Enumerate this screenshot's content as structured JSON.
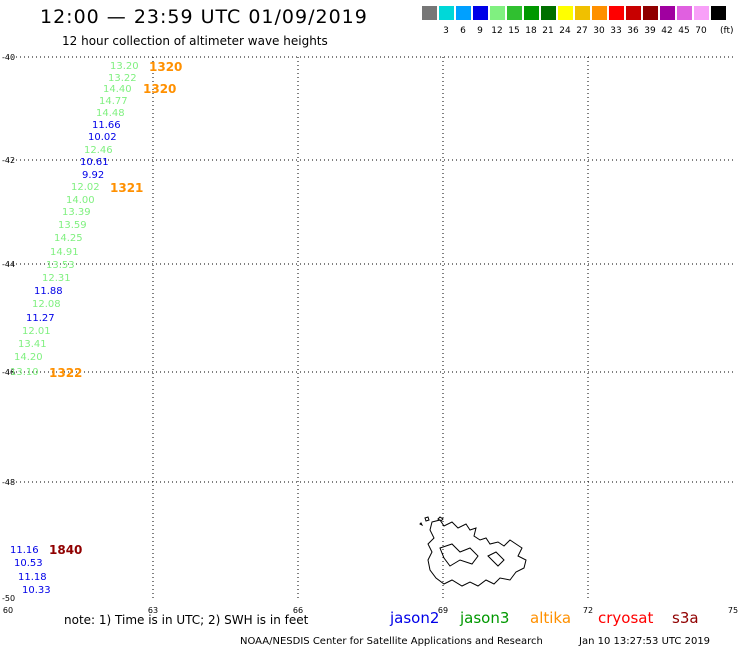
{
  "header": {
    "title": "12:00 — 23:59 UTC 01/09/2019",
    "subtitle": "12 hour collection of altimeter wave heights"
  },
  "legend": {
    "unit": "(ft)",
    "bins": [
      {
        "label": "",
        "color": "#777777"
      },
      {
        "label": "3",
        "color": "#00d8d8"
      },
      {
        "label": "6",
        "color": "#00a0ff"
      },
      {
        "label": "9",
        "color": "#0000e8"
      },
      {
        "label": "12",
        "color": "#80f080"
      },
      {
        "label": "15",
        "color": "#30c030"
      },
      {
        "label": "18",
        "color": "#009800"
      },
      {
        "label": "21",
        "color": "#007000"
      },
      {
        "label": "24",
        "color": "#ffff00"
      },
      {
        "label": "27",
        "color": "#f0c000"
      },
      {
        "label": "30",
        "color": "#ff9000"
      },
      {
        "label": "33",
        "color": "#ff0000"
      },
      {
        "label": "36",
        "color": "#c80000"
      },
      {
        "label": "39",
        "color": "#900000"
      },
      {
        "label": "42",
        "color": "#a000a0"
      },
      {
        "label": "45",
        "color": "#e060e0"
      },
      {
        "label": "70",
        "color": "#f8a0f8"
      },
      {
        "label": "",
        "color": "#000000"
      }
    ]
  },
  "map": {
    "lat_labels": [
      "-40",
      "-42",
      "-44",
      "-46",
      "-48",
      "-50"
    ],
    "lon_labels": [
      "60",
      "63",
      "66",
      "69",
      "72",
      "75"
    ],
    "measurements": [
      {
        "v": "13.20",
        "c": "#80f080"
      },
      {
        "v": "13.22",
        "c": "#80f080"
      },
      {
        "v": "14.40",
        "c": "#80f080"
      },
      {
        "v": "14.77",
        "c": "#80f080"
      },
      {
        "v": "14.48",
        "c": "#80f080"
      },
      {
        "v": "11.66",
        "c": "#0000e8"
      },
      {
        "v": "10.02",
        "c": "#0000e8"
      },
      {
        "v": "12.46",
        "c": "#80f080"
      },
      {
        "v": "10.61",
        "c": "#0000e8"
      },
      {
        "v": "9.92",
        "c": "#0000e8"
      },
      {
        "v": "12.02",
        "c": "#80f080"
      },
      {
        "v": "14.00",
        "c": "#80f080"
      },
      {
        "v": "13.39",
        "c": "#80f080"
      },
      {
        "v": "13.59",
        "c": "#80f080"
      },
      {
        "v": "14.25",
        "c": "#80f080"
      },
      {
        "v": "14.91",
        "c": "#80f080"
      },
      {
        "v": "13.53",
        "c": "#80f080"
      },
      {
        "v": "12.31",
        "c": "#80f080"
      },
      {
        "v": "11.88",
        "c": "#0000e8"
      },
      {
        "v": "12.08",
        "c": "#80f080"
      },
      {
        "v": "11.27",
        "c": "#0000e8"
      },
      {
        "v": "12.01",
        "c": "#80f080"
      },
      {
        "v": "13.41",
        "c": "#80f080"
      },
      {
        "v": "14.20",
        "c": "#80f080"
      },
      {
        "v": "13.10",
        "c": "#80f080"
      },
      {
        "v": "11.16",
        "c": "#0000e8"
      },
      {
        "v": "10.53",
        "c": "#0000e8"
      },
      {
        "v": "11.18",
        "c": "#0000e8"
      },
      {
        "v": "10.33",
        "c": "#0000e8"
      }
    ],
    "pass_times": [
      {
        "v": "1320",
        "c": "#ff9000"
      },
      {
        "v": "1320",
        "c": "#ff9000"
      },
      {
        "v": "1321",
        "c": "#ff9000"
      },
      {
        "v": "1322",
        "c": "#ff9000"
      },
      {
        "v": "1840",
        "c": "#900000"
      }
    ]
  },
  "footer": {
    "note": "note: 1) Time is in UTC; 2) SWH is in feet",
    "satellites": [
      {
        "name": "jason2",
        "color": "#0000e8"
      },
      {
        "name": "jason3",
        "color": "#009800"
      },
      {
        "name": "altika",
        "color": "#ff9000"
      },
      {
        "name": "cryosat",
        "color": "#ff0000"
      },
      {
        "name": "s3a",
        "color": "#900000"
      }
    ],
    "credit": "NOAA/NESDIS Center for Satellite Applications and Research",
    "timestamp": "Jan 10 13:27:53 UTC 2019"
  }
}
